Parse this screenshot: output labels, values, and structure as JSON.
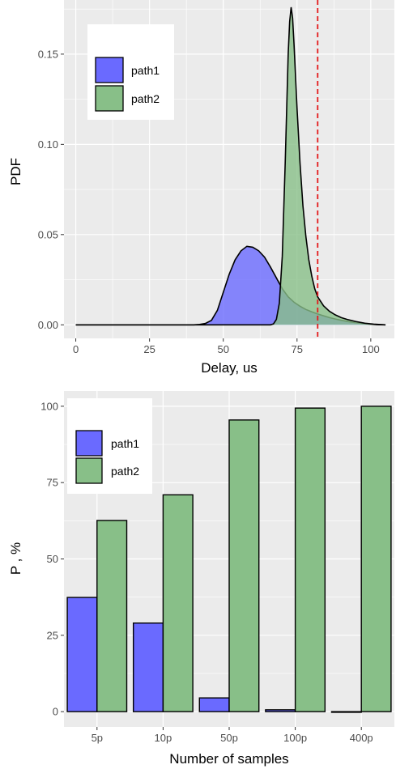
{
  "chart_data": [
    {
      "type": "area",
      "xlabel": "Delay, us",
      "ylabel": "PDF",
      "xlim": [
        -4,
        108
      ],
      "ylim": [
        -0.0075,
        0.18
      ],
      "xticks": [
        0,
        25,
        50,
        75,
        100
      ],
      "yticks": [
        0.0,
        0.05,
        0.1,
        0.15
      ],
      "xtick_labels": [
        "0",
        "25",
        "50",
        "75",
        "100"
      ],
      "ytick_labels": [
        "0.00",
        "0.05",
        "0.10",
        "0.15"
      ],
      "grid": true,
      "legend_position": "top-left",
      "vline": {
        "x": 82,
        "color": "#e41a1c",
        "style": "dashed"
      },
      "series": [
        {
          "name": "path1",
          "color": "#6a6aff",
          "x": [
            0,
            40,
            42,
            44,
            46,
            48,
            50,
            52,
            54,
            56,
            58,
            60,
            62,
            64,
            66,
            68,
            70,
            72,
            74,
            76,
            78,
            80,
            82,
            84,
            86,
            88,
            90,
            92,
            94,
            96,
            98,
            100,
            102,
            105
          ],
          "y": [
            0,
            0,
            0.0002,
            0.0008,
            0.0025,
            0.008,
            0.018,
            0.028,
            0.036,
            0.041,
            0.0435,
            0.043,
            0.041,
            0.0375,
            0.032,
            0.026,
            0.02,
            0.0155,
            0.0125,
            0.0103,
            0.0085,
            0.0072,
            0.006,
            0.005,
            0.004,
            0.0032,
            0.0025,
            0.0019,
            0.0014,
            0.001,
            0.0006,
            0.0003,
            0.0001,
            0
          ]
        },
        {
          "name": "path2",
          "color": "#88bf88",
          "x": [
            0,
            66,
            67,
            68,
            69,
            70,
            71,
            72,
            72.5,
            73,
            73.5,
            74,
            75,
            76,
            77,
            78,
            79,
            80,
            81,
            82,
            84,
            86,
            88,
            90,
            92,
            95,
            98,
            101,
            105
          ],
          "y": [
            0,
            0,
            0.0005,
            0.003,
            0.012,
            0.038,
            0.09,
            0.15,
            0.168,
            0.176,
            0.17,
            0.155,
            0.12,
            0.09,
            0.066,
            0.049,
            0.036,
            0.027,
            0.02,
            0.0155,
            0.0105,
            0.0075,
            0.0055,
            0.004,
            0.003,
            0.0018,
            0.0009,
            0.0004,
            0
          ]
        }
      ]
    },
    {
      "type": "bar",
      "xlabel": "Number of samples",
      "ylabel": "P , %",
      "categories": [
        "5p",
        "10p",
        "50p",
        "100p",
        "400p"
      ],
      "ylim": [
        -5,
        105
      ],
      "yticks": [
        0,
        25,
        50,
        75,
        100
      ],
      "ytick_labels": [
        "0",
        "25",
        "50",
        "75",
        "100"
      ],
      "grid": true,
      "legend_position": "top-left",
      "series": [
        {
          "name": "path1",
          "color": "#6a6aff",
          "values": [
            37.4,
            29,
            4.5,
            0.6,
            0
          ]
        },
        {
          "name": "path2",
          "color": "#88bf88",
          "values": [
            62.6,
            71,
            95.5,
            99.4,
            100
          ]
        }
      ]
    }
  ]
}
